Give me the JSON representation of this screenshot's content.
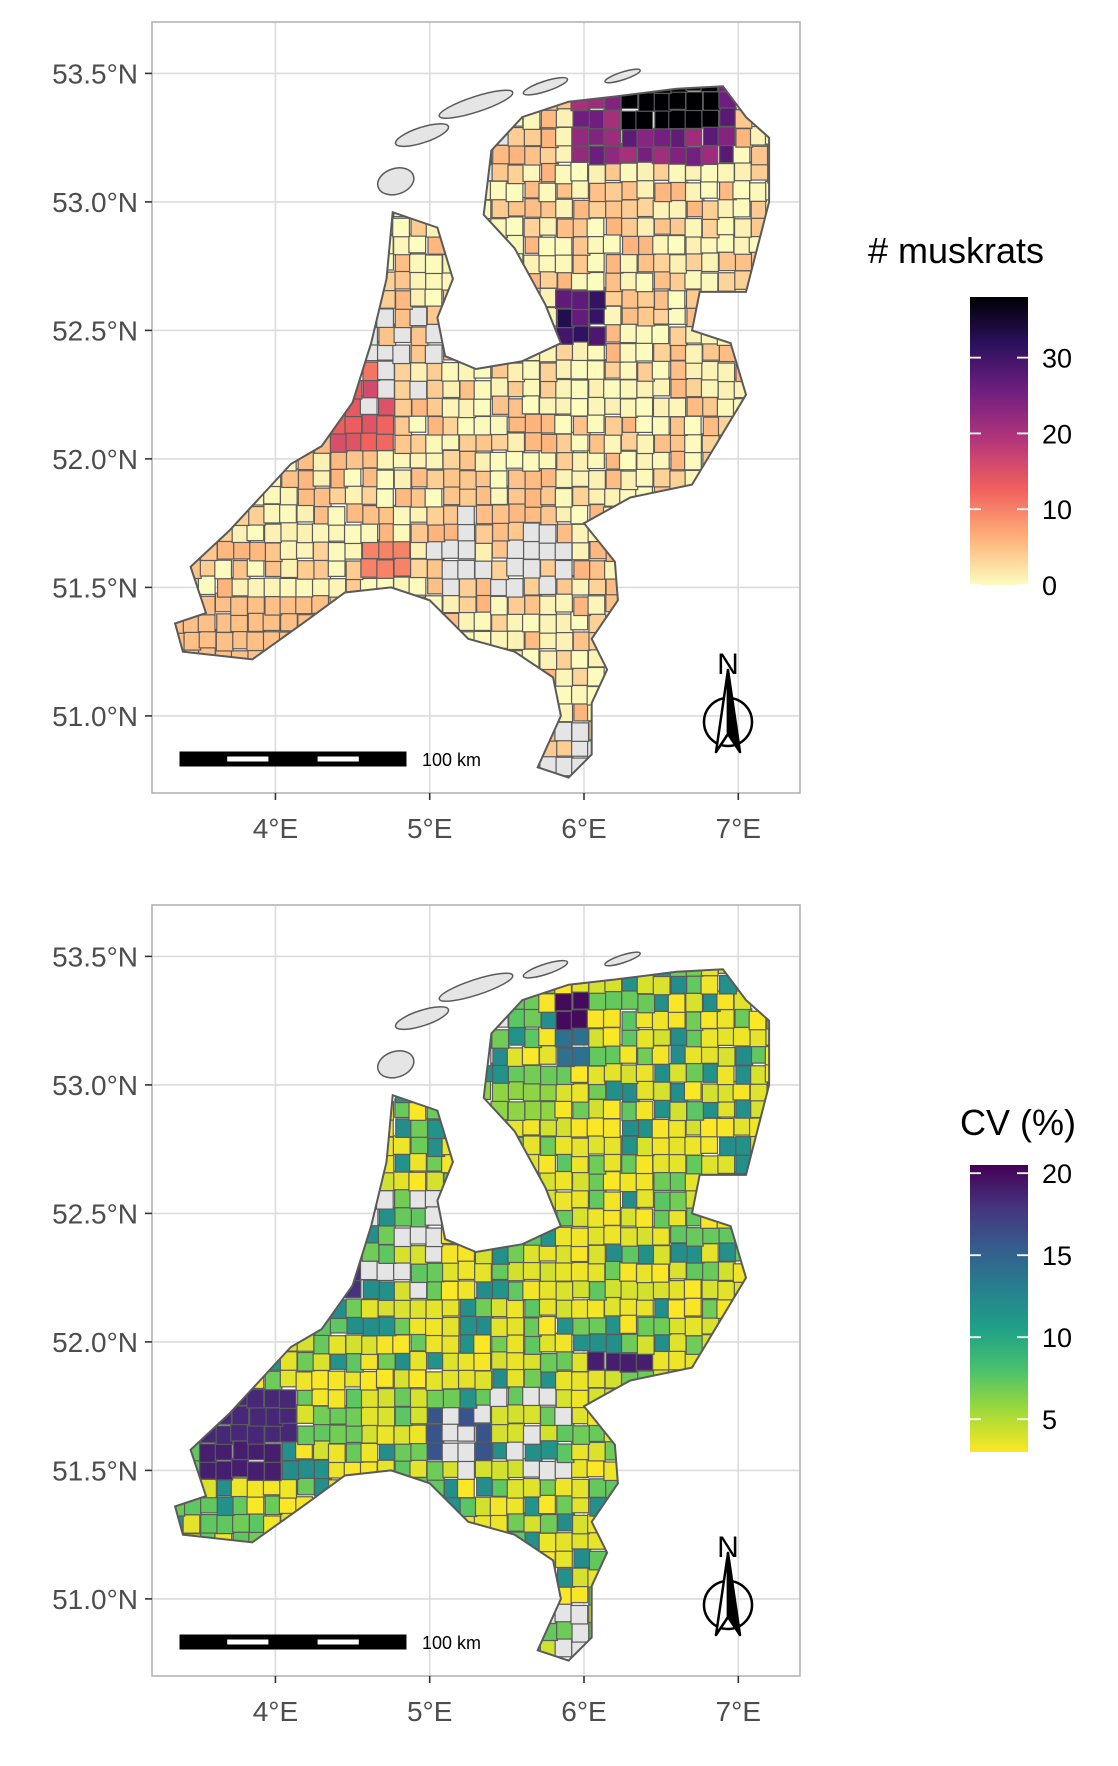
{
  "maps": [
    {
      "id": "muskrats",
      "legend": {
        "title": "# muskrats",
        "ticks": [
          "30",
          "20",
          "10",
          "0"
        ],
        "tick_values": [
          30,
          20,
          10,
          0
        ],
        "range": [
          0,
          38
        ],
        "colors": [
          "#fcfdbf",
          "#feb078",
          "#f1605d",
          "#b63679",
          "#721f81",
          "#2c115f",
          "#000004"
        ]
      }
    },
    {
      "id": "cv",
      "legend": {
        "title": "CV (%)",
        "ticks": [
          "20",
          "15",
          "10",
          "5"
        ],
        "tick_values": [
          20,
          15,
          10,
          5
        ],
        "range": [
          3,
          20.5
        ],
        "colors": [
          "#fde725",
          "#a0da39",
          "#4ac16d",
          "#1fa187",
          "#277f8e",
          "#365c8d",
          "#46327e",
          "#440154"
        ]
      }
    }
  ],
  "axes": {
    "y_ticks": [
      "53.5°N",
      "53.0°N",
      "52.5°N",
      "52.0°N",
      "51.5°N",
      "51.0°N"
    ],
    "y_values": [
      53.5,
      53.0,
      52.5,
      52.0,
      51.5,
      51.0
    ],
    "x_ticks": [
      "4°E",
      "5°E",
      "6°E",
      "7°E"
    ],
    "x_values": [
      4,
      5,
      6,
      7
    ],
    "xlim": [
      3.2,
      7.4
    ],
    "ylim": [
      50.7,
      53.7
    ]
  },
  "scale_bar": {
    "label": "100 km"
  },
  "north_arrow": {
    "label": "N"
  },
  "colors": {
    "no_data": "#e5e5e5",
    "border": "#5a5a5a",
    "grid": "#dcdcdc",
    "panel_border": "#b3b3b3"
  }
}
